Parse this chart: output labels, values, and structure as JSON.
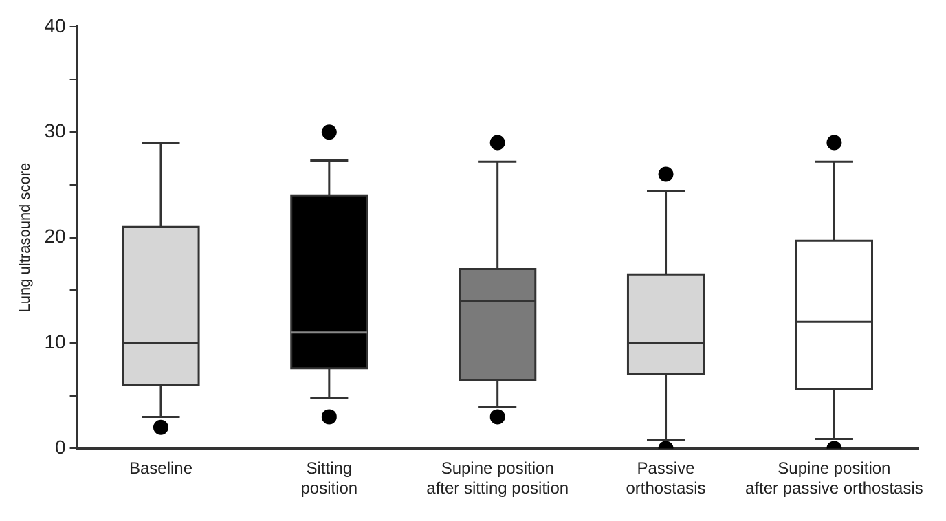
{
  "chart_data": {
    "type": "box",
    "ylabel": "Lung ultrasound score",
    "categories": [
      "Baseline",
      "Sitting\nposition",
      "Supine position\nafter sitting position",
      "Passive\northostasis",
      "Supine position\nafter passive orthostasis"
    ],
    "colors": [
      "#d6d6d6",
      "#000000",
      "#7a7a7a",
      "#d6d6d6",
      "#ffffff"
    ],
    "boxes": [
      {
        "low": 3,
        "q1": 6,
        "median": 10,
        "q3": 21,
        "high": 29,
        "outliers": [
          2
        ]
      },
      {
        "low": 4.8,
        "q1": 7.6,
        "median": 11,
        "q3": 24,
        "high": 27.3,
        "outliers": [
          30,
          3
        ]
      },
      {
        "low": 3.9,
        "q1": 6.5,
        "median": 14,
        "q3": 17,
        "high": 27.2,
        "outliers": [
          29,
          3
        ]
      },
      {
        "low": 0.8,
        "q1": 7.1,
        "median": 10,
        "q3": 16.5,
        "high": 24.4,
        "outliers": [
          26,
          0
        ]
      },
      {
        "low": 0.9,
        "q1": 5.6,
        "median": 12,
        "q3": 19.7,
        "high": 27.2,
        "outliers": [
          29,
          0
        ]
      }
    ],
    "ylim": [
      0,
      40
    ],
    "yticks": [
      0,
      {
        "value": 5,
        "label": null
      },
      10,
      {
        "value": 15,
        "label": null
      },
      20,
      {
        "value": 25,
        "label": null
      },
      30,
      {
        "value": 35,
        "label": null
      },
      40
    ],
    "grid": false,
    "legend": false
  }
}
